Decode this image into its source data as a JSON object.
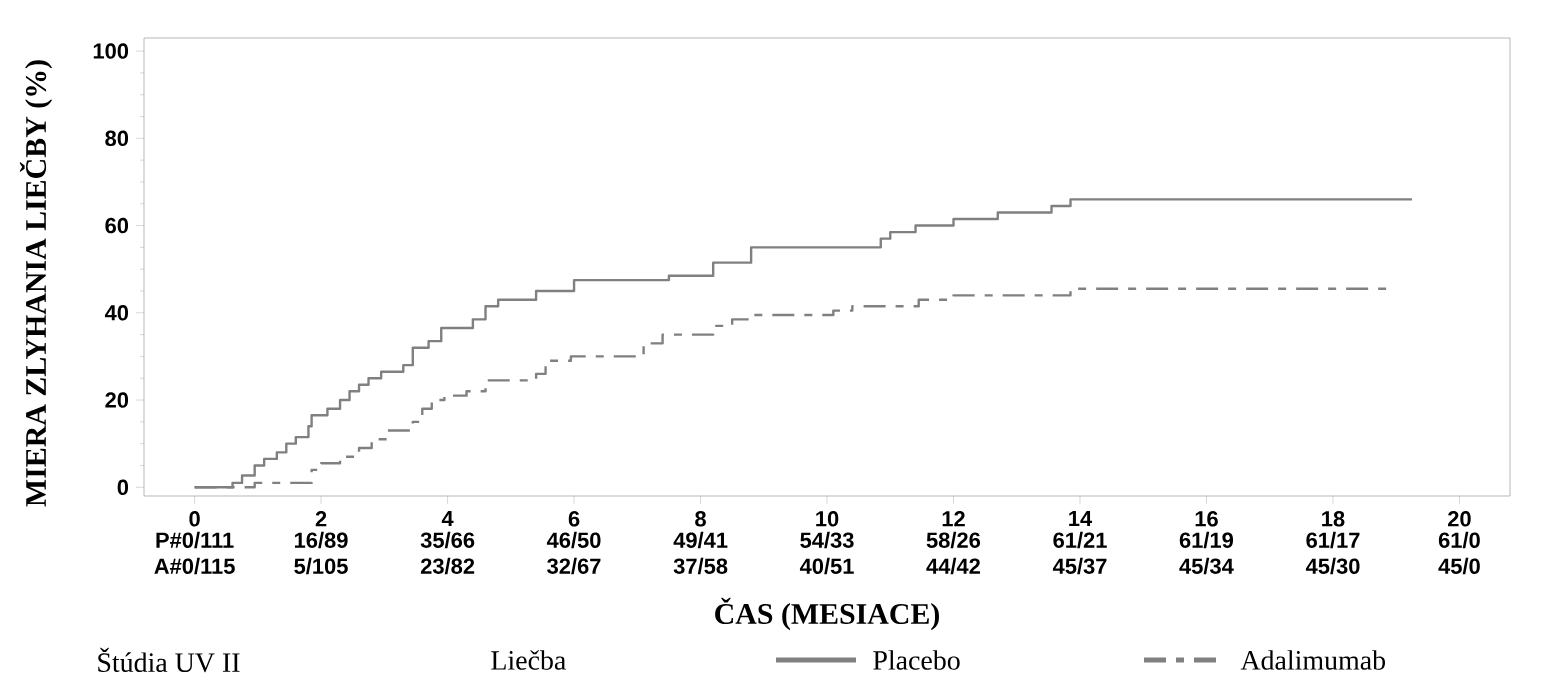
{
  "chart_data": {
    "type": "step",
    "xlabel": "ČAS (MESIACE)",
    "ylabel": "MIERA ZLYHANIA LIEČBY (%)",
    "legend_title": "Liečba",
    "xlim": [
      -0.8,
      20.8
    ],
    "ylim": [
      -2,
      103
    ],
    "xticks": [
      0,
      2,
      4,
      6,
      8,
      10,
      12,
      14,
      16,
      18,
      20
    ],
    "yticks": [
      0,
      20,
      40,
      60,
      80,
      100
    ],
    "grid": false,
    "legend": "bottom",
    "series": [
      {
        "name": "Placebo",
        "color": "#808080",
        "line_style": "solid",
        "x": [
          0,
          0.6,
          0.75,
          0.95,
          1.1,
          1.3,
          1.45,
          1.6,
          1.8,
          1.85,
          2.1,
          2.3,
          2.45,
          2.6,
          2.75,
          2.95,
          3.3,
          3.45,
          3.7,
          3.9,
          4.4,
          4.6,
          4.8,
          5.4,
          6.0,
          7.5,
          8.2,
          8.8,
          10.85,
          11.0,
          11.4,
          12.0,
          12.7,
          13.55,
          13.85,
          19.25
        ],
        "values": [
          0,
          1,
          2.7,
          5,
          6.5,
          8,
          10,
          11.5,
          14,
          16.5,
          18,
          20,
          22,
          23.5,
          25,
          26.5,
          28,
          32,
          33.5,
          36.5,
          38.5,
          41.5,
          43,
          45,
          47.5,
          48.5,
          51.5,
          55,
          57,
          58.5,
          60,
          61.5,
          63,
          64.5,
          66,
          66
        ]
      },
      {
        "name": "Adalimumab",
        "color": "#808080",
        "line_style": "dashed",
        "x": [
          0,
          0.95,
          1.85,
          2.0,
          2.3,
          2.6,
          2.8,
          3.05,
          3.45,
          3.6,
          3.75,
          3.95,
          4.3,
          4.6,
          5.4,
          5.55,
          5.95,
          7.1,
          7.4,
          8.2,
          8.5,
          8.8,
          10.1,
          10.4,
          11.45,
          12.0,
          13.85,
          18.9
        ],
        "values": [
          0,
          1,
          4,
          5.5,
          7,
          9,
          11,
          13,
          15,
          18,
          20,
          21,
          22,
          24.5,
          26,
          29,
          30,
          33,
          35,
          37,
          38.5,
          39.5,
          40.5,
          41.5,
          43,
          44,
          45.5,
          45.5
        ]
      }
    ],
    "annotations": [
      "P#0/111",
      "16/89",
      "35/66",
      "46/50",
      "49/41",
      "54/33",
      "58/26",
      "61/21",
      "61/19",
      "61/17",
      "61/0",
      "A#0/115",
      "5/105",
      "23/82",
      "32/67",
      "37/58",
      "40/51",
      "44/42",
      "45/37",
      "45/34",
      "45/30",
      "45/0",
      "Štúdia UV II"
    ]
  }
}
